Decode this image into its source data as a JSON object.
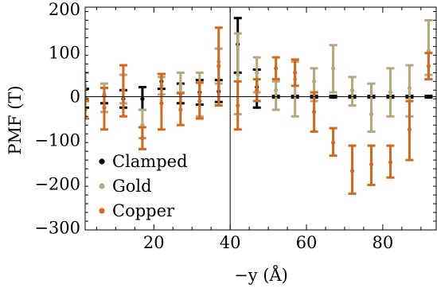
{
  "chart_data": {
    "type": "scatter",
    "xlabel": "−y (Å)",
    "ylabel": "PMF (T)",
    "xlim": [
      2,
      94
    ],
    "ylim": [
      -305,
      205
    ],
    "x_ticks": [
      20,
      40,
      60,
      80
    ],
    "x_tick_labels": [
      "20",
      "40",
      "60",
      "80"
    ],
    "y_ticks": [
      200,
      100,
      0,
      -100,
      -200,
      -300
    ],
    "y_tick_labels": [
      "200",
      "100",
      "0",
      "−100",
      "−200",
      "−300"
    ],
    "reference_lines": {
      "y": 0,
      "x": 40
    },
    "legend_position": "bottom-left",
    "series": [
      {
        "name": "Clamped",
        "color": "#000000",
        "points": [
          {
            "x": 2,
            "y": -3,
            "lo": -25,
            "hi": 18
          },
          {
            "x": 7,
            "y": 2,
            "lo": -15,
            "hi": 20
          },
          {
            "x": 12,
            "y": -5,
            "lo": -25,
            "hi": 15
          },
          {
            "x": 17,
            "y": -5,
            "lo": -30,
            "hi": 22
          },
          {
            "x": 22,
            "y": 35,
            "lo": 18,
            "hi": 52
          },
          {
            "x": 27,
            "y": 8,
            "lo": -15,
            "hi": 30
          },
          {
            "x": 32,
            "y": 10,
            "lo": -18,
            "hi": 38
          },
          {
            "x": 37,
            "y": 12,
            "lo": -12,
            "hi": 38
          },
          {
            "x": 42,
            "y": 120,
            "lo": 55,
            "hi": 180
          },
          {
            "x": 47,
            "y": 22,
            "lo": -25,
            "hi": 62
          },
          {
            "x": 52,
            "y": 0,
            "lo": -2,
            "hi": 2
          },
          {
            "x": 57,
            "y": 0,
            "lo": -2,
            "hi": 2
          },
          {
            "x": 62,
            "y": 0,
            "lo": -2,
            "hi": 2
          },
          {
            "x": 67,
            "y": 0,
            "lo": -2,
            "hi": 2
          },
          {
            "x": 72,
            "y": 0,
            "lo": -2,
            "hi": 2
          },
          {
            "x": 77,
            "y": 0,
            "lo": -2,
            "hi": 2
          },
          {
            "x": 82,
            "y": 0,
            "lo": -2,
            "hi": 2
          },
          {
            "x": 87,
            "y": 0,
            "lo": -2,
            "hi": 2
          },
          {
            "x": 92,
            "y": 0,
            "lo": -2,
            "hi": 2
          }
        ]
      },
      {
        "name": "Gold",
        "color": "#b8a77a",
        "points": [
          {
            "x": 2,
            "y": 25,
            "lo": -5,
            "hi": 55
          },
          {
            "x": 7,
            "y": 5,
            "lo": -35,
            "hi": 30
          },
          {
            "x": 12,
            "y": 15,
            "lo": -15,
            "hi": 50
          },
          {
            "x": 17,
            "y": -65,
            "lo": -95,
            "hi": -30
          },
          {
            "x": 22,
            "y": 25,
            "lo": 5,
            "hi": 45
          },
          {
            "x": 27,
            "y": 28,
            "lo": 10,
            "hi": 55
          },
          {
            "x": 32,
            "y": 5,
            "lo": -45,
            "hi": 55
          },
          {
            "x": 37,
            "y": 80,
            "lo": 30,
            "hi": 110
          },
          {
            "x": 42,
            "y": 50,
            "lo": -40,
            "hi": 145
          },
          {
            "x": 47,
            "y": 55,
            "lo": 10,
            "hi": 90
          },
          {
            "x": 52,
            "y": 15,
            "lo": -30,
            "hi": 35
          },
          {
            "x": 57,
            "y": 40,
            "lo": -45,
            "hi": 80
          },
          {
            "x": 62,
            "y": 35,
            "lo": -10,
            "hi": 65
          },
          {
            "x": 67,
            "y": 65,
            "lo": 10,
            "hi": 118
          },
          {
            "x": 72,
            "y": 15,
            "lo": -20,
            "hi": 45
          },
          {
            "x": 77,
            "y": -40,
            "lo": -80,
            "hi": 30
          },
          {
            "x": 82,
            "y": 10,
            "lo": -45,
            "hi": 65
          },
          {
            "x": 87,
            "y": 20,
            "lo": -45,
            "hi": 72
          },
          {
            "x": 92,
            "y": 105,
            "lo": 50,
            "hi": 175
          }
        ]
      },
      {
        "name": "Copper",
        "color": "#d2691e",
        "points": [
          {
            "x": 2,
            "y": -30,
            "lo": -50,
            "hi": -10
          },
          {
            "x": 7,
            "y": -25,
            "lo": -75,
            "hi": 20
          },
          {
            "x": 12,
            "y": 15,
            "lo": -45,
            "hi": 72
          },
          {
            "x": 17,
            "y": -95,
            "lo": -120,
            "hi": -70
          },
          {
            "x": 22,
            "y": -15,
            "lo": -75,
            "hi": 52
          },
          {
            "x": 27,
            "y": -30,
            "lo": -65,
            "hi": 8
          },
          {
            "x": 32,
            "y": -10,
            "lo": -50,
            "hi": 32
          },
          {
            "x": 37,
            "y": 70,
            "lo": -20,
            "hi": 158
          },
          {
            "x": 42,
            "y": -20,
            "lo": -75,
            "hi": 35
          },
          {
            "x": 47,
            "y": 15,
            "lo": -10,
            "hi": 40
          },
          {
            "x": 52,
            "y": 65,
            "lo": 40,
            "hi": 90
          },
          {
            "x": 57,
            "y": 55,
            "lo": 25,
            "hi": 85
          },
          {
            "x": 62,
            "y": -35,
            "lo": -80,
            "hi": 10
          },
          {
            "x": 67,
            "y": -105,
            "lo": -135,
            "hi": -72
          },
          {
            "x": 72,
            "y": -170,
            "lo": -222,
            "hi": -112
          },
          {
            "x": 77,
            "y": -155,
            "lo": -202,
            "hi": -112
          },
          {
            "x": 82,
            "y": -150,
            "lo": -185,
            "hi": -112
          },
          {
            "x": 87,
            "y": -75,
            "lo": -145,
            "hi": -10
          },
          {
            "x": 92,
            "y": 70,
            "lo": 40,
            "hi": 100
          }
        ]
      }
    ]
  }
}
